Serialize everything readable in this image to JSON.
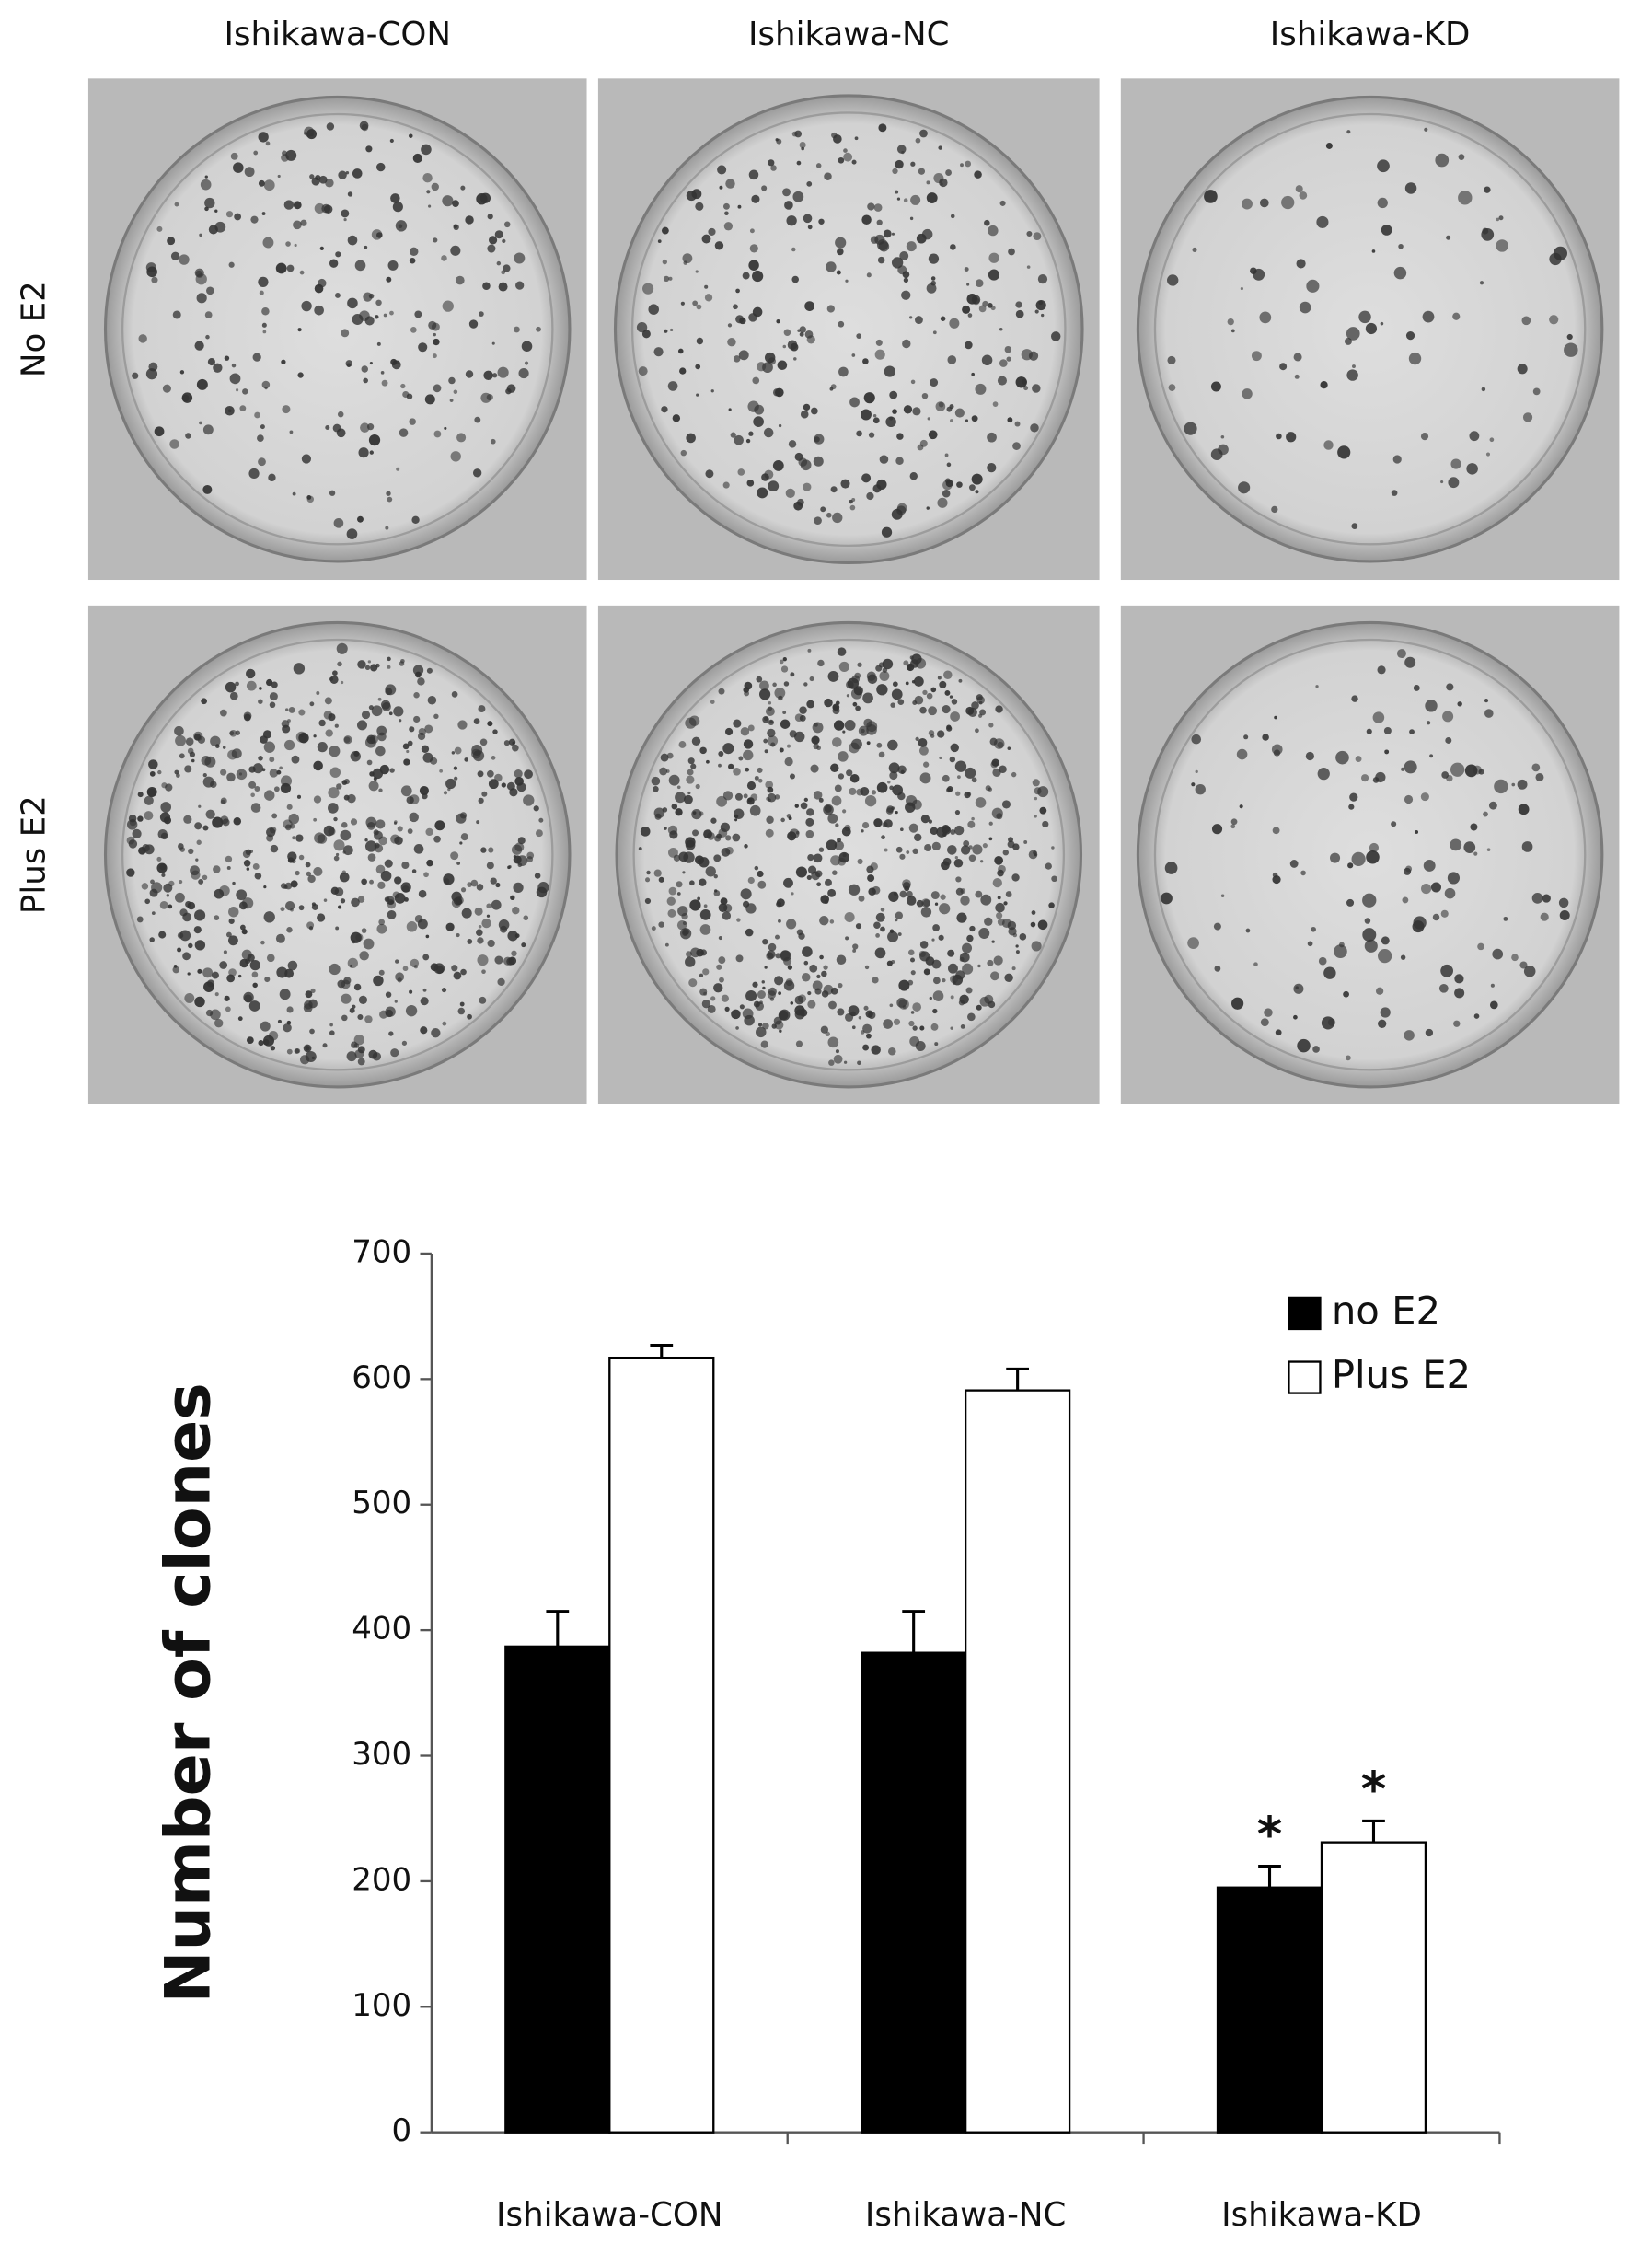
{
  "photo_panel": {
    "columns": [
      "Ishikawa-CON",
      "Ishikawa-NC",
      "Ishikawa-KD"
    ],
    "rows": [
      "No E2",
      "Plus E2"
    ]
  },
  "chart_data": {
    "type": "bar",
    "y_label": "Number of clones",
    "categories": [
      "Ishikawa-CON",
      "Ishikawa-NC",
      "Ishikawa-KD"
    ],
    "series": [
      {
        "name": "no E2",
        "color": "#000000",
        "values": [
          387,
          382,
          195
        ],
        "errors": [
          28,
          33,
          17
        ],
        "notes": [
          null,
          null,
          "*"
        ]
      },
      {
        "name": "Plus E2",
        "color": "#ffffff",
        "values": [
          617,
          591,
          231
        ],
        "errors": [
          10,
          17,
          17
        ],
        "notes": [
          null,
          null,
          "*"
        ]
      }
    ],
    "ylim": [
      0,
      700
    ],
    "yticks": [
      0,
      100,
      200,
      300,
      400,
      500,
      600,
      700
    ],
    "grid": false,
    "legend": "top-right"
  }
}
